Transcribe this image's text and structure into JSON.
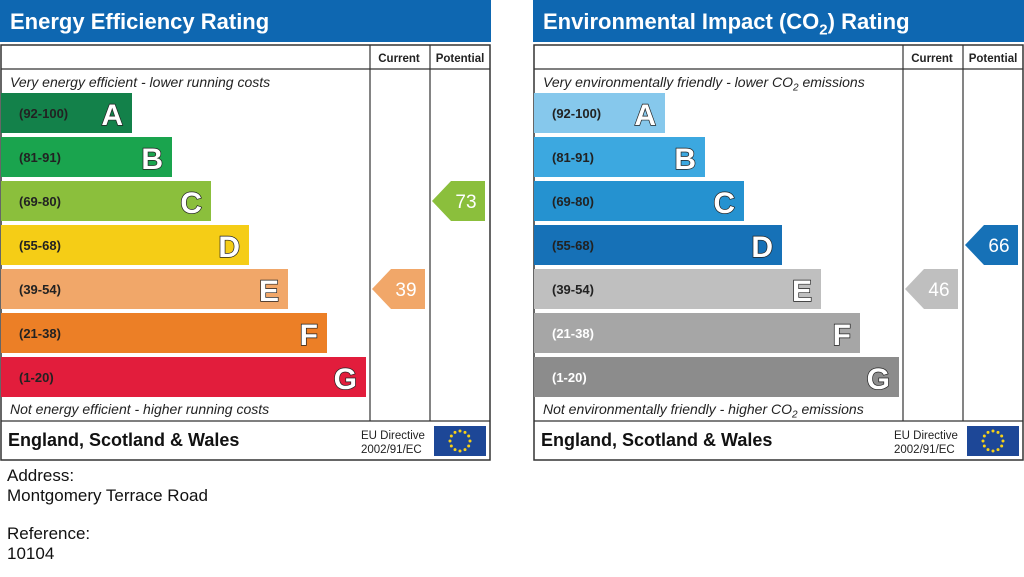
{
  "colors": {
    "header": "#0e67b1",
    "eff_bands": [
      "#13814a",
      "#1aa44e",
      "#8bbf3c",
      "#f5cd16",
      "#f1a769",
      "#ec7f26",
      "#e21d3c"
    ],
    "env_bands": [
      "#86c8ec",
      "#3ca8e0",
      "#2592d0",
      "#1671b7",
      "#bfbfbf",
      "#a6a6a6",
      "#8c8c8c"
    ],
    "eu_flag": "#1d4797",
    "eu_stars": "#f7d117"
  },
  "bands": [
    {
      "range": "(92-100)",
      "letter": "A",
      "min": 92,
      "max": 100
    },
    {
      "range": "(81-91)",
      "letter": "B",
      "min": 81,
      "max": 91
    },
    {
      "range": "(69-80)",
      "letter": "C",
      "min": 69,
      "max": 80
    },
    {
      "range": "(55-68)",
      "letter": "D",
      "min": 55,
      "max": 68
    },
    {
      "range": "(39-54)",
      "letter": "E",
      "min": 39,
      "max": 54
    },
    {
      "range": "(21-38)",
      "letter": "F",
      "min": 21,
      "max": 38
    },
    {
      "range": "(1-20)",
      "letter": "G",
      "min": 1,
      "max": 20
    }
  ],
  "chart_data": [
    {
      "type": "bar",
      "title": "Energy Efficiency Rating",
      "column_headers": [
        "Current",
        "Potential"
      ],
      "top_caption": "Very energy efficient - lower running costs",
      "bottom_caption": "Not energy efficient - higher running costs",
      "region": "England, Scotland & Wales",
      "directive": [
        "EU Directive",
        "2002/91/EC"
      ],
      "current": 39,
      "potential": 73
    },
    {
      "type": "bar",
      "title": "Environmental Impact (CO2) Rating",
      "column_headers": [
        "Current",
        "Potential"
      ],
      "top_caption": "Very environmentally friendly - lower CO2 emissions",
      "bottom_caption": "Not environmentally friendly - higher CO2 emissions",
      "region": "England, Scotland & Wales",
      "directive": [
        "EU Directive",
        "2002/91/EC"
      ],
      "current": 46,
      "potential": 66
    }
  ],
  "address": {
    "label": "Address:",
    "value": "Montgomery Terrace Road"
  },
  "reference": {
    "label": "Reference:",
    "value": "10104"
  }
}
